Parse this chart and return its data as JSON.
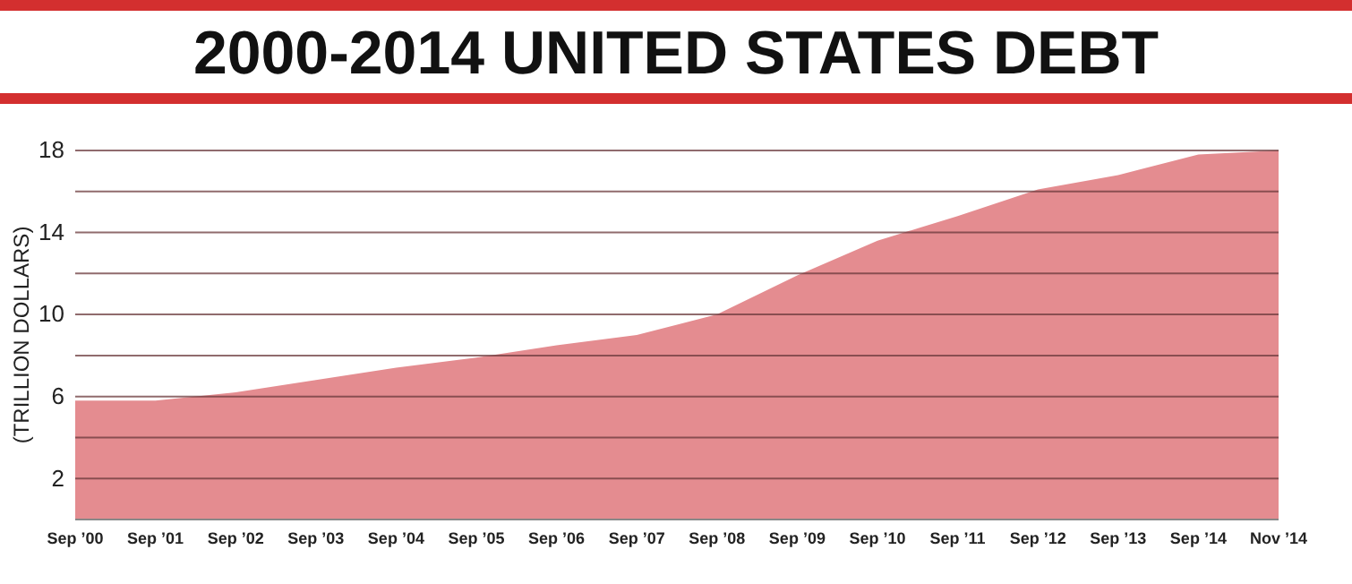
{
  "chart_data": {
    "type": "area",
    "title": "2000-2014 UNITED STATES DEBT",
    "ylabel": "(TRILLION DOLLARS)",
    "categories": [
      "Sep ’00",
      "Sep ’01",
      "Sep ’02",
      "Sep ’03",
      "Sep ’04",
      "Sep ’05",
      "Sep ’06",
      "Sep ’07",
      "Sep ’08",
      "Sep ’09",
      "Sep ’10",
      "Sep ’11",
      "Sep ’12",
      "Sep ’13",
      "Sep ’14",
      "Nov ’14"
    ],
    "values": [
      5.8,
      5.8,
      6.2,
      6.8,
      7.4,
      7.9,
      8.5,
      9.0,
      10.0,
      11.9,
      13.6,
      14.8,
      16.1,
      16.8,
      17.8,
      18.0
    ],
    "color": "#e48c90",
    "ylim": [
      0,
      18
    ],
    "yticks": [
      2,
      {
        "value": 4,
        "label": null
      },
      6,
      {
        "value": 8,
        "label": null
      },
      10,
      {
        "value": 12,
        "label": null
      },
      14,
      {
        "value": 16,
        "label": null
      },
      18
    ],
    "grid": "y"
  }
}
